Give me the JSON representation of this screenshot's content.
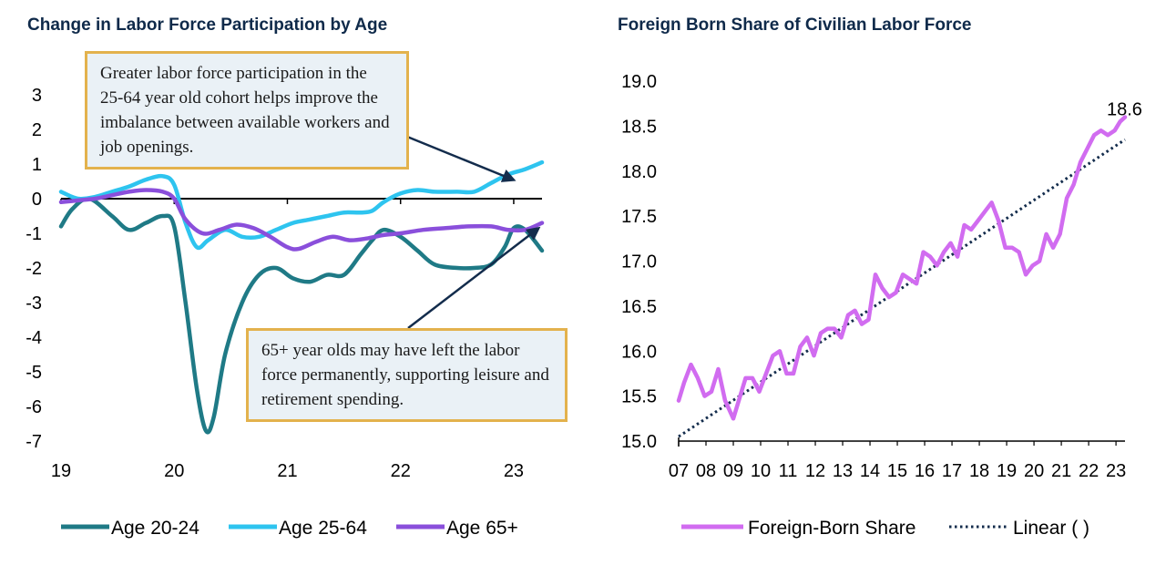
{
  "chart_data": [
    {
      "type": "line",
      "title": "Change in Labor Force Participation by Age",
      "xlabel": "",
      "ylabel": "",
      "x_ticks": [
        "19",
        "20",
        "21",
        "22",
        "23"
      ],
      "xlim": [
        2019.0,
        2023.25
      ],
      "ylim": [
        -7,
        3
      ],
      "y_ticks": [
        "3",
        "2",
        "1",
        "0",
        "-1",
        "-2",
        "-3",
        "-4",
        "-5",
        "-6",
        "-7"
      ],
      "legend": "bottom",
      "series": [
        {
          "name": "Age 20-24",
          "color": "#1f7a86",
          "x": [
            2019.0,
            2019.1,
            2019.25,
            2019.45,
            2019.6,
            2019.75,
            2019.9,
            2020.0,
            2020.1,
            2020.2,
            2020.28,
            2020.35,
            2020.45,
            2020.6,
            2020.75,
            2020.9,
            2021.05,
            2021.2,
            2021.35,
            2021.5,
            2021.65,
            2021.75,
            2021.85,
            2022.0,
            2022.15,
            2022.3,
            2022.5,
            2022.65,
            2022.8,
            2022.92,
            2023.0,
            2023.1,
            2023.25
          ],
          "y": [
            -0.8,
            -0.3,
            0.0,
            -0.5,
            -0.9,
            -0.7,
            -0.5,
            -0.8,
            -3.0,
            -5.5,
            -6.7,
            -6.3,
            -4.5,
            -3.0,
            -2.2,
            -2.0,
            -2.3,
            -2.4,
            -2.2,
            -2.2,
            -1.6,
            -1.2,
            -0.9,
            -1.1,
            -1.5,
            -1.9,
            -2.0,
            -2.0,
            -1.9,
            -1.4,
            -0.85,
            -0.9,
            -1.5
          ]
        },
        {
          "name": "Age 25-64",
          "color": "#2ec4ef",
          "x": [
            2019.0,
            2019.15,
            2019.3,
            2019.45,
            2019.6,
            2019.75,
            2019.9,
            2020.0,
            2020.1,
            2020.2,
            2020.3,
            2020.45,
            2020.6,
            2020.75,
            2020.9,
            2021.05,
            2021.2,
            2021.35,
            2021.5,
            2021.65,
            2021.75,
            2021.85,
            2022.0,
            2022.15,
            2022.3,
            2022.5,
            2022.65,
            2022.8,
            2022.95,
            2023.1,
            2023.25
          ],
          "y": [
            0.2,
            0.0,
            0.05,
            0.2,
            0.35,
            0.55,
            0.65,
            0.4,
            -0.7,
            -1.4,
            -1.2,
            -0.9,
            -1.1,
            -1.1,
            -0.9,
            -0.7,
            -0.6,
            -0.5,
            -0.4,
            -0.4,
            -0.35,
            -0.1,
            0.15,
            0.25,
            0.2,
            0.2,
            0.2,
            0.45,
            0.7,
            0.85,
            1.05
          ]
        },
        {
          "name": "Age 65+",
          "color": "#8a4fdb",
          "x": [
            2019.0,
            2019.15,
            2019.3,
            2019.45,
            2019.6,
            2019.75,
            2019.9,
            2020.0,
            2020.1,
            2020.25,
            2020.4,
            2020.55,
            2020.7,
            2020.85,
            2021.0,
            2021.1,
            2021.25,
            2021.4,
            2021.55,
            2021.7,
            2021.85,
            2022.0,
            2022.2,
            2022.4,
            2022.6,
            2022.8,
            2022.95,
            2023.1,
            2023.25
          ],
          "y": [
            -0.1,
            -0.05,
            0.0,
            0.1,
            0.2,
            0.25,
            0.2,
            0.0,
            -0.6,
            -1.0,
            -0.9,
            -0.75,
            -0.85,
            -1.1,
            -1.4,
            -1.45,
            -1.25,
            -1.1,
            -1.2,
            -1.15,
            -1.05,
            -1.0,
            -0.9,
            -0.85,
            -0.8,
            -0.8,
            -0.9,
            -0.9,
            -0.7
          ]
        }
      ],
      "annotations": [
        {
          "text": "Greater labor force participation in the 25-64 year old cohort helps improve the imbalance between available workers and job openings.",
          "points_to_series": "Age 25-64"
        },
        {
          "text": "65+ year olds may have left the labor force permanently, supporting leisure and retirement spending.",
          "points_to_series": "Age 65+"
        }
      ]
    },
    {
      "type": "line",
      "title": "Foreign Born Share of Civilian Labor Force",
      "xlabel": "",
      "ylabel": "",
      "x_ticks": [
        "07",
        "08",
        "09",
        "10",
        "11",
        "12",
        "13",
        "14",
        "15",
        "16",
        "17",
        "18",
        "19",
        "20",
        "21",
        "22",
        "23"
      ],
      "xlim": [
        2007.0,
        2023.33
      ],
      "ylim": [
        15.0,
        19.0
      ],
      "y_ticks": [
        "19.0",
        "18.5",
        "18.0",
        "17.5",
        "17.0",
        "16.5",
        "16.0",
        "15.5",
        "15.0"
      ],
      "legend": "bottom",
      "data_label": "18.6",
      "series": [
        {
          "name": "Foreign-Born Share",
          "color": "#d16cf0",
          "x": [
            2007.0,
            2007.2,
            2007.45,
            2007.7,
            2007.95,
            2008.2,
            2008.45,
            2008.7,
            2009.0,
            2009.2,
            2009.45,
            2009.7,
            2009.95,
            2010.2,
            2010.45,
            2010.7,
            2010.95,
            2011.2,
            2011.45,
            2011.7,
            2011.95,
            2012.2,
            2012.45,
            2012.7,
            2012.95,
            2013.2,
            2013.45,
            2013.7,
            2013.95,
            2014.2,
            2014.45,
            2014.7,
            2014.95,
            2015.2,
            2015.45,
            2015.7,
            2015.95,
            2016.2,
            2016.45,
            2016.7,
            2016.95,
            2017.2,
            2017.45,
            2017.7,
            2017.95,
            2018.2,
            2018.45,
            2018.7,
            2018.95,
            2019.2,
            2019.45,
            2019.7,
            2019.95,
            2020.2,
            2020.45,
            2020.7,
            2020.95,
            2021.2,
            2021.45,
            2021.7,
            2021.95,
            2022.2,
            2022.45,
            2022.7,
            2022.95,
            2023.15,
            2023.33
          ],
          "y": [
            15.45,
            15.65,
            15.85,
            15.7,
            15.5,
            15.55,
            15.8,
            15.45,
            15.25,
            15.45,
            15.7,
            15.7,
            15.55,
            15.75,
            15.95,
            16.0,
            15.75,
            15.75,
            16.05,
            16.15,
            15.95,
            16.2,
            16.25,
            16.25,
            16.15,
            16.4,
            16.45,
            16.3,
            16.35,
            16.85,
            16.7,
            16.6,
            16.65,
            16.85,
            16.8,
            16.75,
            17.1,
            17.05,
            16.95,
            17.1,
            17.2,
            17.05,
            17.4,
            17.35,
            17.45,
            17.55,
            17.65,
            17.45,
            17.15,
            17.15,
            17.1,
            16.85,
            16.95,
            17.0,
            17.3,
            17.15,
            17.3,
            17.7,
            17.85,
            18.1,
            18.25,
            18.4,
            18.45,
            18.4,
            18.45,
            18.55,
            18.6
          ]
        },
        {
          "name": "Linear ( )",
          "color": "#132c4c",
          "style": "dotted",
          "x": [
            2007.0,
            2023.33
          ],
          "y": [
            15.05,
            18.35
          ]
        }
      ]
    }
  ]
}
